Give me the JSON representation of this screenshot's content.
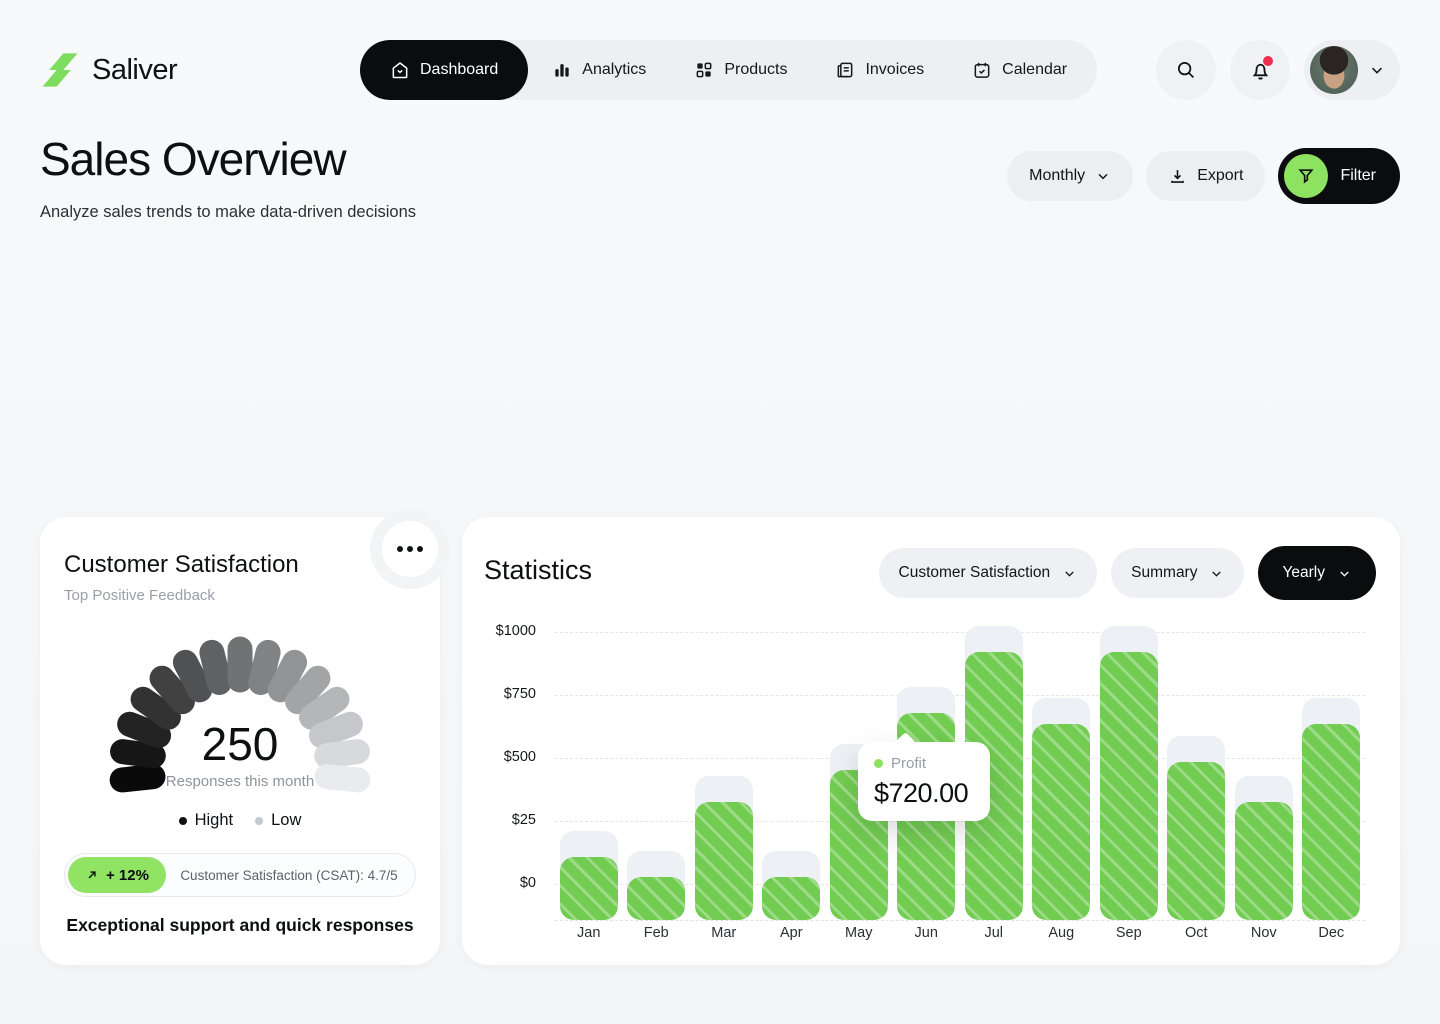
{
  "brand": {
    "name": "Saliver",
    "logo_color": "#7edd5e"
  },
  "nav": {
    "items": [
      {
        "label": "Dashboard",
        "icon": "home-icon",
        "active": true
      },
      {
        "label": "Analytics",
        "icon": "bar-chart-icon",
        "active": false
      },
      {
        "label": "Products",
        "icon": "grid-icon",
        "active": false
      },
      {
        "label": "Invoices",
        "icon": "invoice-icon",
        "active": false
      },
      {
        "label": "Calendar",
        "icon": "calendar-icon",
        "active": false
      }
    ]
  },
  "actions": {
    "search_icon": "search-icon",
    "notifications": {
      "icon": "bell-icon",
      "has_unread": true,
      "unread_color": "#ee2d4f"
    },
    "profile": {
      "icon": "chevron-down-icon"
    }
  },
  "page": {
    "title": "Sales Overview",
    "subtitle": "Analyze sales trends to make data-driven decisions"
  },
  "toolbar": {
    "period": "Monthly",
    "export_label": "Export",
    "filter_label": "Filter",
    "filter_accent": "#8ee261"
  },
  "satisfaction_card": {
    "title": "Customer Satisfaction",
    "subtitle": "Top Positive Feedback",
    "gauge": {
      "value": "250",
      "caption": "Responses this month",
      "segments": 15,
      "start_color": "#0a0a0a",
      "end_color": "#e9ebee"
    },
    "legend": [
      {
        "label": "Hight",
        "color": "#111111"
      },
      {
        "label": "Low",
        "color": "#c3c9cf"
      }
    ],
    "badge": {
      "delta": "+ 12%",
      "delta_color": "#90e363",
      "text": "Customer Satisfaction (CSAT): 4.7/5"
    },
    "footnote": "Exceptional support and quick responses"
  },
  "statistics_card": {
    "title": "Statistics",
    "filters": [
      {
        "label": "Customer Satisfaction",
        "variant": "light"
      },
      {
        "label": "Summary",
        "variant": "light"
      },
      {
        "label": "Yearly",
        "variant": "dark"
      }
    ],
    "tooltip": {
      "series": "Profit",
      "value": "$720.00",
      "month": "Jun"
    }
  },
  "chart_data": {
    "type": "bar",
    "title": "Statistics",
    "categories": [
      "Jan",
      "Feb",
      "Mar",
      "Apr",
      "May",
      "Jun",
      "Jul",
      "Aug",
      "Sep",
      "Oct",
      "Nov",
      "Dec"
    ],
    "series": [
      {
        "name": "Profit",
        "values": [
          220,
          150,
          410,
          150,
          520,
          720,
          930,
          680,
          930,
          550,
          410,
          680
        ]
      }
    ],
    "y_ticks": [
      "$1000",
      "$750",
      "$500",
      "$25",
      "$0"
    ],
    "ylim": [
      0,
      1000
    ],
    "xlabel": "",
    "ylabel": "",
    "grid": "dashed",
    "legend_position": "none",
    "bar_color": "#72cc52",
    "track_color": "#edf0f4",
    "track_extra_value": 90,
    "highlight_index": 5
  }
}
